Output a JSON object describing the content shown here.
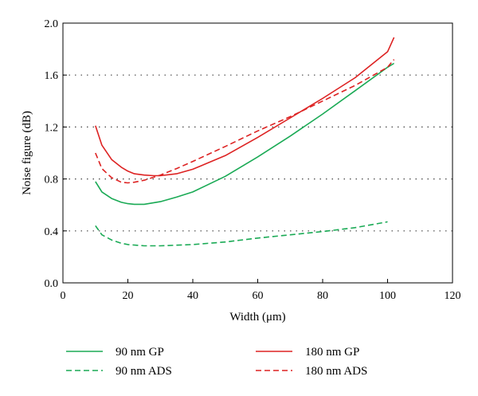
{
  "chart_data": {
    "type": "line",
    "xlabel": "Width (μm)",
    "ylabel": "Noise figure (dB)",
    "xlim": [
      0,
      120
    ],
    "ylim": [
      0.0,
      2.0
    ],
    "x_ticks": [
      "0",
      "20",
      "40",
      "60",
      "80",
      "100",
      "120"
    ],
    "y_ticks": [
      "0.0",
      "0.4",
      "0.8",
      "1.2",
      "1.6",
      "2.0"
    ],
    "grid": "horizontal dotted",
    "legend_position": "bottom",
    "series": [
      {
        "name": "90 nm GP",
        "color": "#1aaa55",
        "dash": "solid",
        "x": [
          10,
          12,
          15,
          18,
          20,
          22,
          25,
          30,
          35,
          40,
          50,
          60,
          70,
          80,
          90,
          100,
          102
        ],
        "y": [
          0.78,
          0.7,
          0.65,
          0.62,
          0.61,
          0.605,
          0.605,
          0.625,
          0.66,
          0.7,
          0.82,
          0.97,
          1.13,
          1.3,
          1.48,
          1.66,
          1.69
        ]
      },
      {
        "name": "90 nm ADS",
        "color": "#1aaa55",
        "dash": "dashed",
        "x": [
          10,
          12,
          15,
          18,
          20,
          25,
          30,
          35,
          40,
          50,
          60,
          70,
          80,
          90,
          100
        ],
        "y": [
          0.44,
          0.37,
          0.33,
          0.305,
          0.295,
          0.285,
          0.285,
          0.29,
          0.295,
          0.315,
          0.345,
          0.37,
          0.395,
          0.425,
          0.47
        ]
      },
      {
        "name": "180 nm GP",
        "color": "#dd2222",
        "dash": "solid",
        "x": [
          10,
          12,
          15,
          18,
          20,
          22,
          25,
          28,
          30,
          35,
          40,
          50,
          60,
          70,
          80,
          90,
          100,
          102
        ],
        "y": [
          1.21,
          1.06,
          0.95,
          0.89,
          0.86,
          0.84,
          0.83,
          0.825,
          0.825,
          0.84,
          0.875,
          0.98,
          1.12,
          1.27,
          1.42,
          1.58,
          1.78,
          1.89
        ]
      },
      {
        "name": "180 nm ADS",
        "color": "#dd2222",
        "dash": "dashed",
        "x": [
          10,
          12,
          15,
          18,
          20,
          22,
          25,
          30,
          35,
          40,
          50,
          60,
          70,
          80,
          90,
          100,
          102
        ],
        "y": [
          1.0,
          0.88,
          0.81,
          0.775,
          0.77,
          0.775,
          0.79,
          0.83,
          0.88,
          0.935,
          1.05,
          1.17,
          1.28,
          1.4,
          1.52,
          1.66,
          1.72
        ]
      }
    ]
  }
}
